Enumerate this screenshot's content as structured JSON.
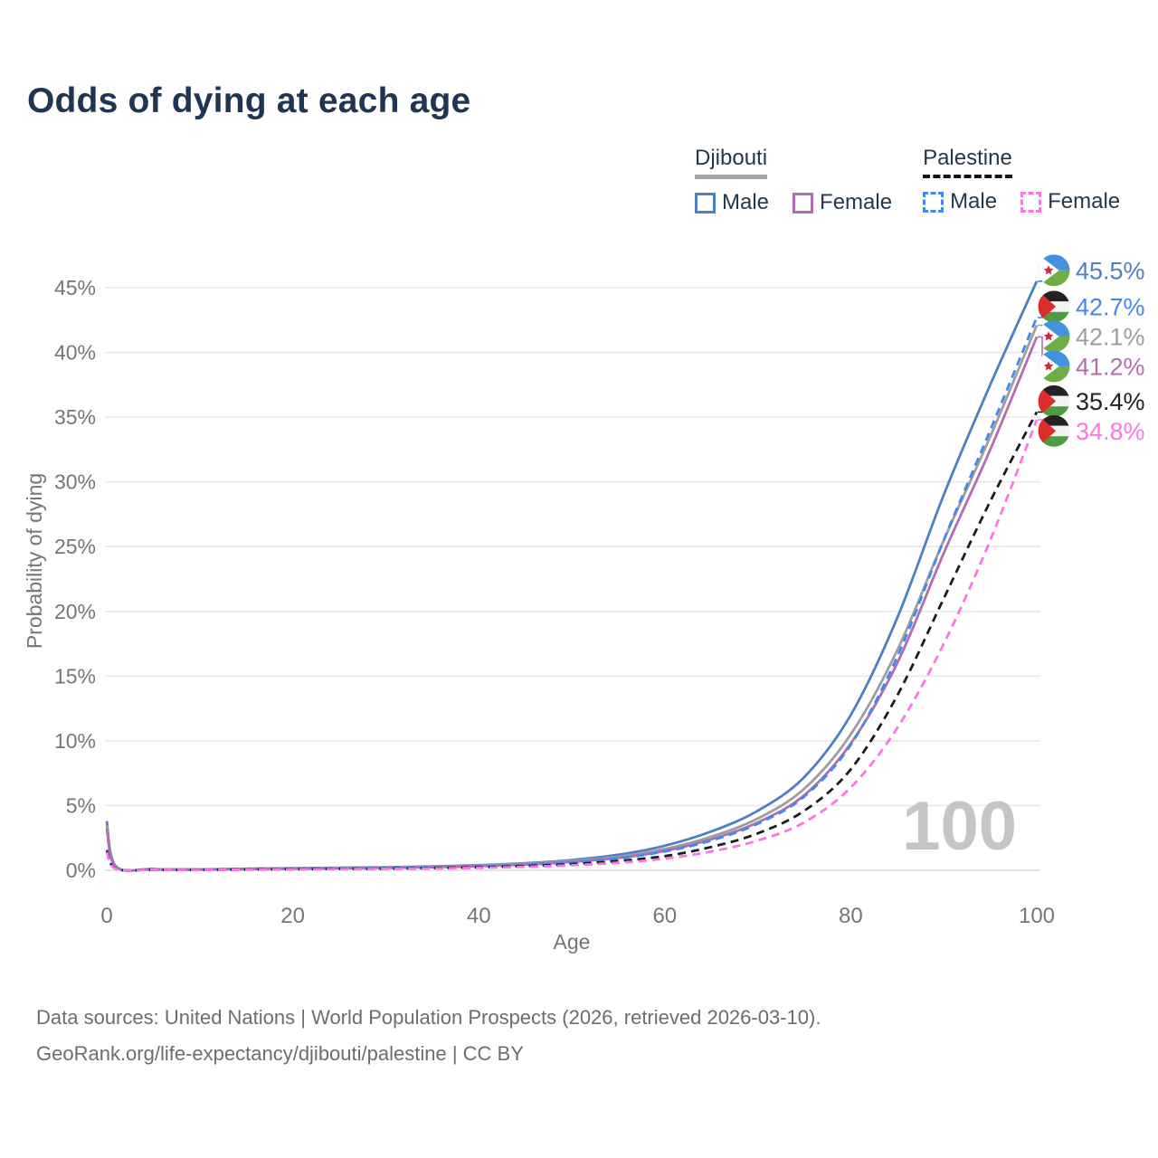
{
  "title": "Odds of dying at each age",
  "watermark": "100",
  "legend": {
    "groups": [
      {
        "label": "Djibouti",
        "underline_color": "#a5a5a5",
        "underline_style": "solid",
        "items": [
          {
            "label": "Male",
            "color": "#4d80c2",
            "style": "solid"
          },
          {
            "label": "Female",
            "color": "#b26cb2",
            "style": "solid"
          }
        ]
      },
      {
        "label": "Palestine",
        "underline_color": "#141414",
        "underline_style": "dashed",
        "items": [
          {
            "label": "Male",
            "color": "#4189f2",
            "style": "dashed"
          },
          {
            "label": "Female",
            "color": "#fb76e4",
            "style": "dashed"
          }
        ]
      }
    ]
  },
  "footer": {
    "line1": "Data sources: United Nations | World Population Prospects (2026, retrieved 2026-03-10).",
    "line2": "GeoRank.org/life-expectancy/djibouti/palestine | CC BY"
  },
  "chart_data": {
    "type": "line",
    "title": "Odds of dying at each age",
    "xlabel": "Age",
    "ylabel": "Probability of dying",
    "xlim": [
      0,
      100
    ],
    "ylim": [
      0,
      47
    ],
    "xticks": [
      0,
      20,
      40,
      60,
      80,
      100
    ],
    "yticks": [
      0,
      5,
      10,
      15,
      20,
      25,
      30,
      35,
      40,
      45
    ],
    "ytick_suffix": "%",
    "grid": true,
    "legend_position": "top-right",
    "x": [
      0,
      1,
      5,
      10,
      15,
      20,
      25,
      30,
      35,
      40,
      45,
      50,
      55,
      60,
      65,
      70,
      75,
      80,
      85,
      90,
      95,
      100
    ],
    "series": [
      {
        "name": "Djibouti Male",
        "country": "Djibouti",
        "sex": "Male",
        "flag": "djibouti",
        "color": "#4d80c2",
        "label_color": "#4d80c2",
        "dash": "solid",
        "end_label": "45.5%",
        "values": [
          3.8,
          0.3,
          0.1,
          0.08,
          0.12,
          0.17,
          0.2,
          0.24,
          0.3,
          0.4,
          0.55,
          0.8,
          1.2,
          1.9,
          3.0,
          4.6,
          7.2,
          12.0,
          19.5,
          29.0,
          37.5,
          45.5
        ]
      },
      {
        "name": "Djibouti Both sexes",
        "country": "Djibouti",
        "sex": "Both",
        "flag": "djibouti",
        "color": "#9e9e9e",
        "label_color": "#9e9e9e",
        "dash": "solid",
        "end_label": "42.1%",
        "values": [
          3.5,
          0.27,
          0.09,
          0.07,
          0.11,
          0.15,
          0.18,
          0.21,
          0.27,
          0.36,
          0.5,
          0.72,
          1.05,
          1.65,
          2.6,
          4.0,
          6.3,
          10.5,
          17.0,
          25.5,
          33.5,
          42.1
        ]
      },
      {
        "name": "Djibouti Female",
        "country": "Djibouti",
        "sex": "Female",
        "flag": "djibouti",
        "color": "#b26cb2",
        "label_color": "#b26cb2",
        "dash": "solid",
        "end_label": "41.2%",
        "values": [
          3.2,
          0.25,
          0.08,
          0.06,
          0.1,
          0.13,
          0.16,
          0.19,
          0.24,
          0.32,
          0.45,
          0.65,
          0.95,
          1.5,
          2.4,
          3.7,
          5.8,
          9.8,
          16.0,
          24.5,
          32.5,
          41.2
        ]
      },
      {
        "name": "Palestine Male",
        "country": "Palestine",
        "sex": "Male",
        "flag": "palestine",
        "color": "#4189f2",
        "label_color": "#4189f2",
        "dash": "dashed",
        "end_label": "42.7%",
        "values": [
          1.6,
          0.12,
          0.05,
          0.04,
          0.08,
          0.12,
          0.14,
          0.17,
          0.22,
          0.29,
          0.42,
          0.62,
          0.92,
          1.45,
          2.3,
          3.6,
          5.7,
          9.7,
          16.5,
          25.5,
          34.0,
          42.7
        ]
      },
      {
        "name": "Palestine Both sexes",
        "country": "Palestine",
        "sex": "Both",
        "flag": "palestine",
        "color": "#1c1c1c",
        "label_color": "#222222",
        "dash": "dashed",
        "end_label": "35.4%",
        "values": [
          1.5,
          0.11,
          0.05,
          0.04,
          0.06,
          0.09,
          0.11,
          0.13,
          0.17,
          0.23,
          0.33,
          0.48,
          0.72,
          1.1,
          1.8,
          2.85,
          4.6,
          7.8,
          13.5,
          21.0,
          28.5,
          35.4
        ]
      },
      {
        "name": "Palestine Female",
        "country": "Palestine",
        "sex": "Female",
        "flag": "palestine",
        "color": "#fb76e4",
        "label_color": "#fb76e4",
        "dash": "dashed",
        "end_label": "34.8%",
        "values": [
          1.4,
          0.1,
          0.04,
          0.03,
          0.05,
          0.07,
          0.09,
          0.11,
          0.14,
          0.19,
          0.27,
          0.39,
          0.58,
          0.9,
          1.45,
          2.3,
          3.7,
          6.4,
          11.0,
          17.5,
          25.5,
          34.8
        ]
      }
    ]
  }
}
